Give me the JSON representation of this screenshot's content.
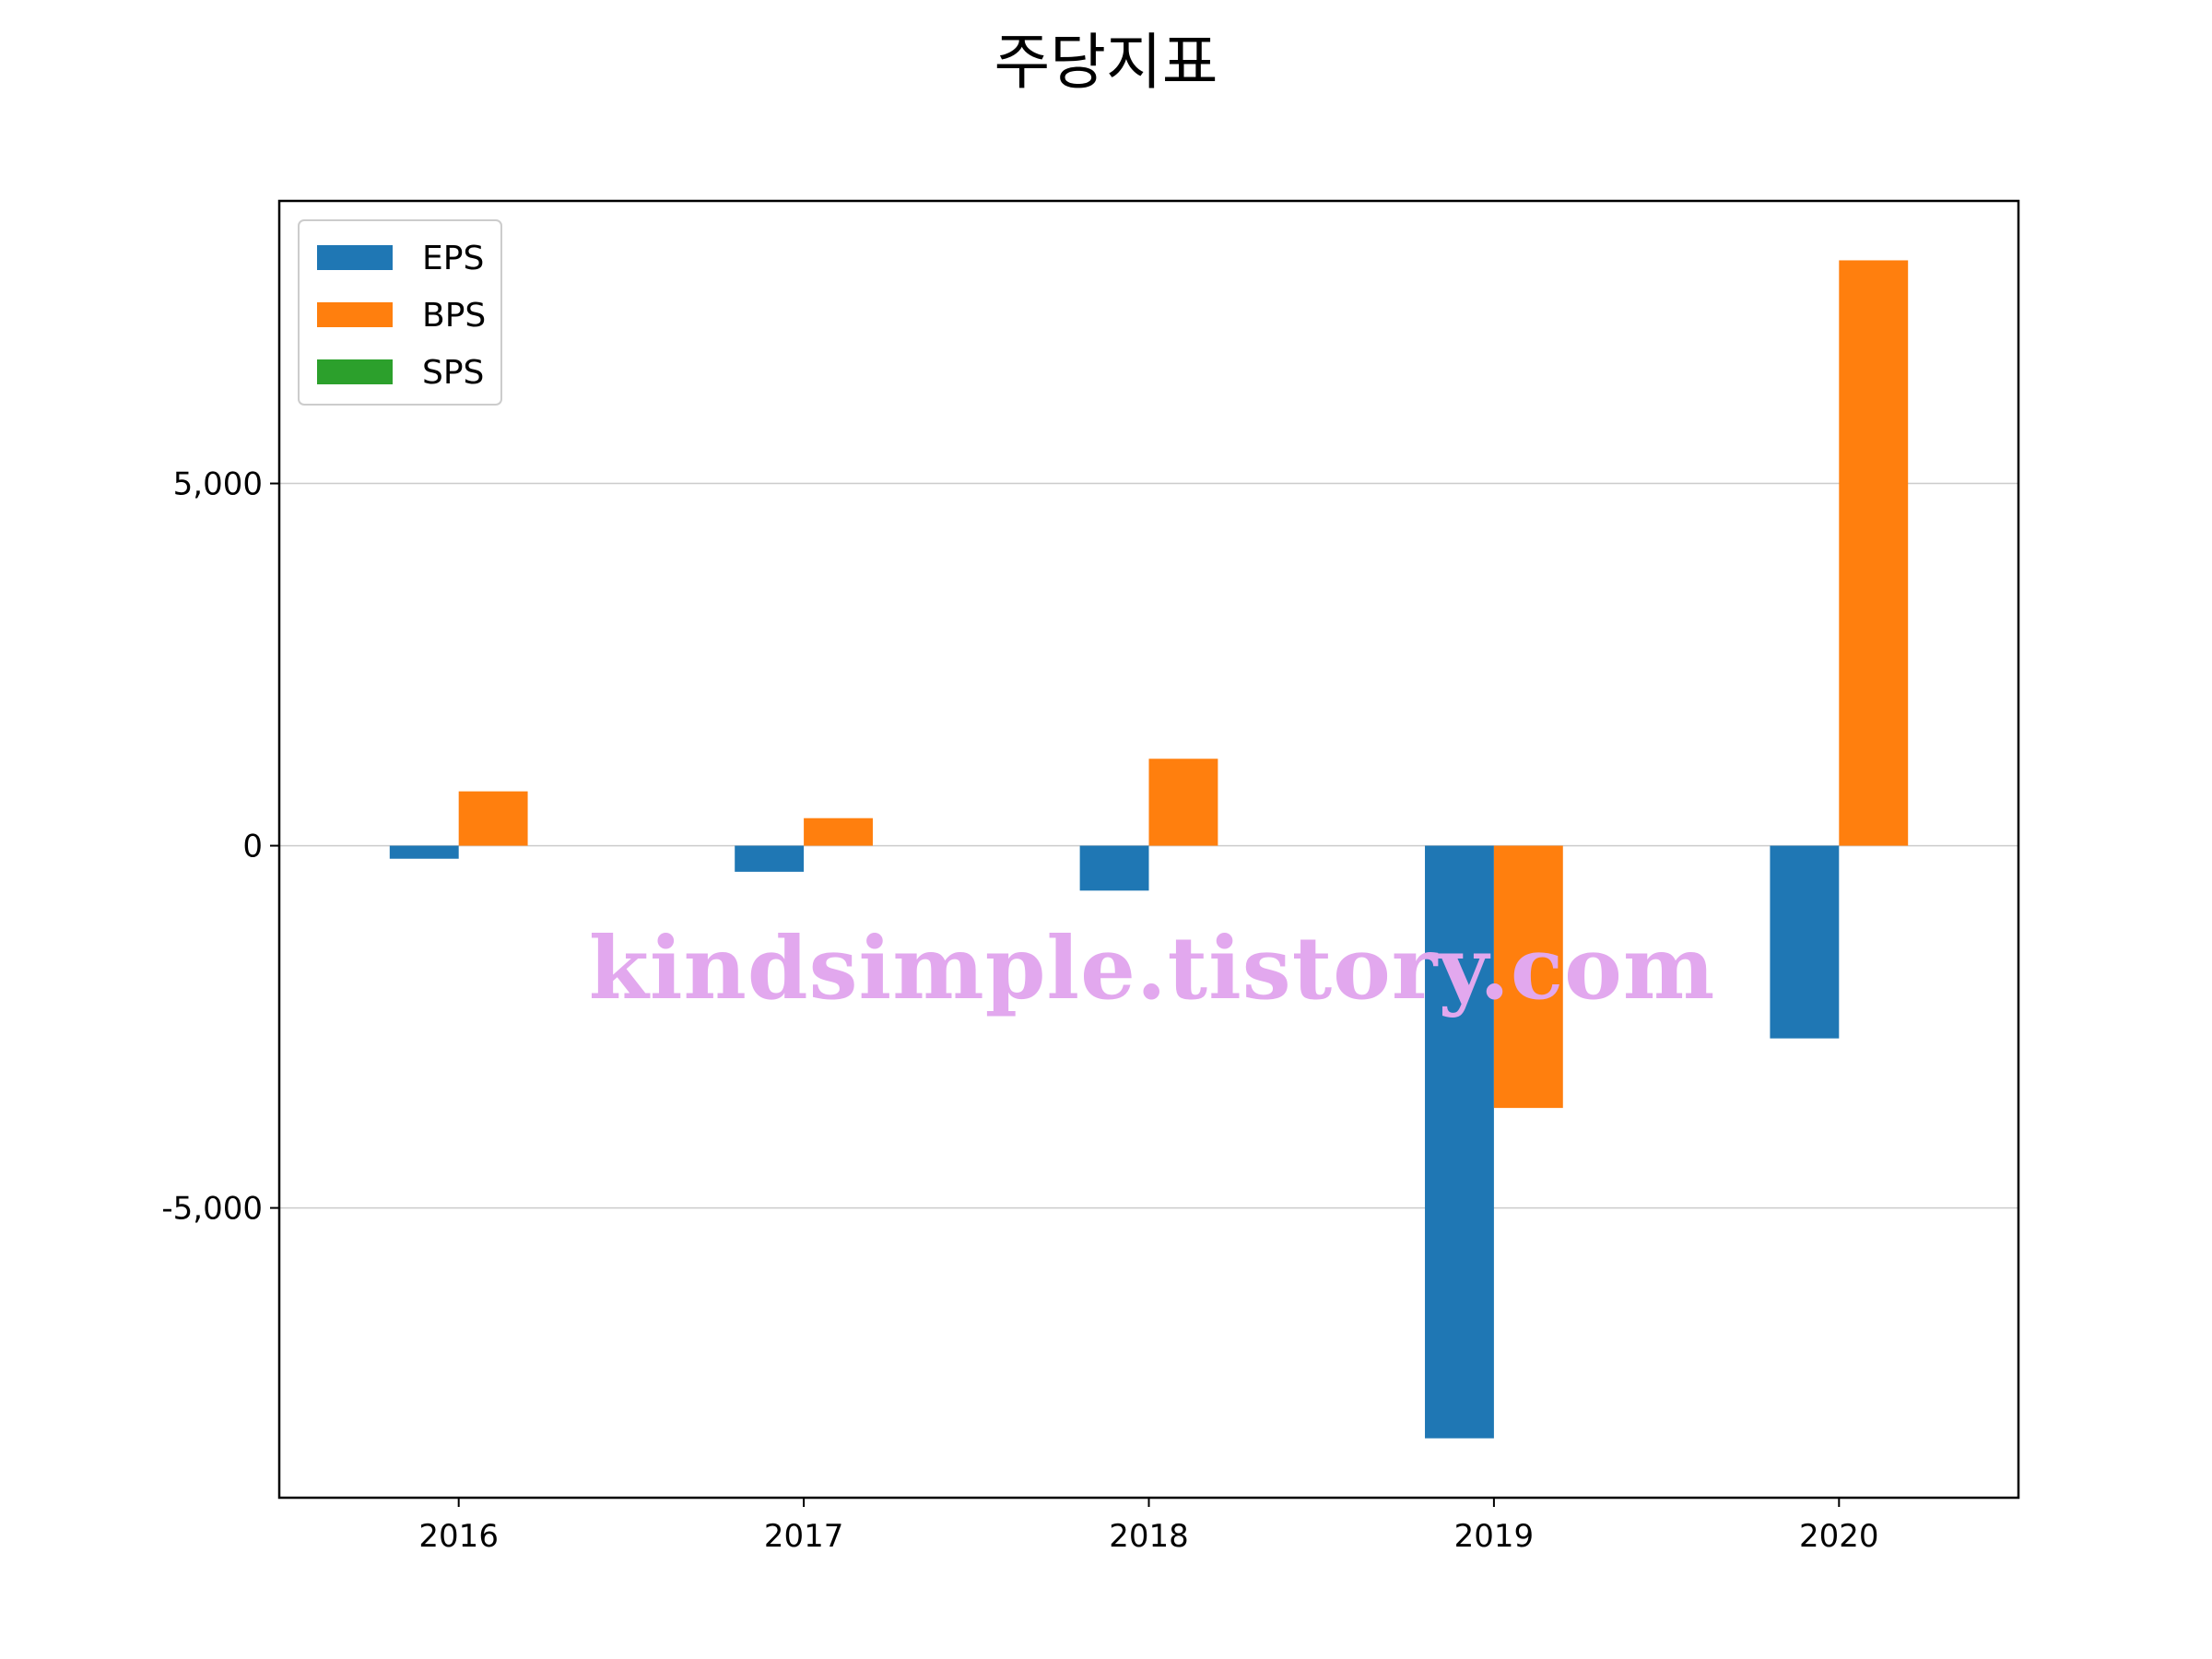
{
  "chart_data": {
    "type": "bar",
    "title": "주당지표",
    "xlabel": "",
    "ylabel": "",
    "categories": [
      "2016",
      "2017",
      "2018",
      "2019",
      "2020"
    ],
    "series": [
      {
        "name": "EPS",
        "color": "#1f77b4",
        "values": [
          -180,
          -360,
          -620,
          -8180,
          -2660
        ]
      },
      {
        "name": "BPS",
        "color": "#ff7f0e",
        "values": [
          750,
          380,
          1200,
          -3620,
          8080
        ]
      },
      {
        "name": "SPS",
        "color": "#2ca02c",
        "values": [
          null,
          null,
          null,
          null,
          null
        ]
      }
    ],
    "ylim": [
      -9000,
      8900
    ],
    "yticks": [
      -5000,
      0,
      5000
    ],
    "ytick_labels": [
      "-5,000",
      "0",
      "5,000"
    ],
    "grid": "y",
    "legend_position": "upper-left"
  },
  "watermark": "kindsimple.tistory.com"
}
